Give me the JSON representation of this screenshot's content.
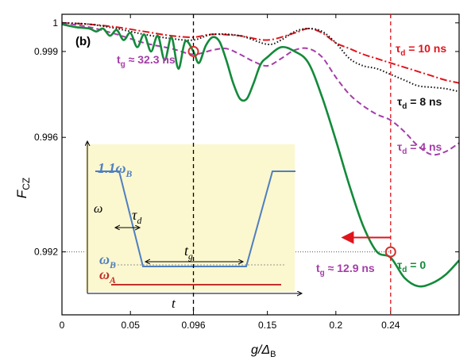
{
  "chart_data": {
    "type": "line",
    "panel_label": "(b)",
    "xlabel": {
      "main": "g/Δ",
      "sub": "B"
    },
    "ylabel": {
      "main": "F",
      "sub": "CZ"
    },
    "xlim": [
      0,
      0.29
    ],
    "ylim": [
      0.9898,
      1.0003
    ],
    "xticks": [
      0,
      0.05,
      0.096,
      0.15,
      0.2,
      0.24
    ],
    "xtick_labels": [
      "0",
      "0.05",
      "0.096",
      "0.15",
      "0.2",
      "0.24"
    ],
    "yticks": [
      0.992,
      0.996,
      0.999,
      1.0
    ],
    "ytick_labels": [
      "0.992",
      "0.996",
      "0.999",
      "1"
    ],
    "vlines": [
      {
        "x": 0.096,
        "color": "#000000"
      },
      {
        "x": 0.24,
        "color": "#e0141c"
      }
    ],
    "hline": {
      "y": 0.992,
      "x_max": 0.24
    },
    "series": [
      {
        "name": "τd = 0",
        "color": "#138a3a",
        "dash": "solid",
        "x": [
          0,
          0.01,
          0.02,
          0.025,
          0.03,
          0.035,
          0.04,
          0.045,
          0.05,
          0.055,
          0.06,
          0.065,
          0.07,
          0.075,
          0.08,
          0.085,
          0.09,
          0.096,
          0.1,
          0.105,
          0.11,
          0.115,
          0.12,
          0.125,
          0.13,
          0.135,
          0.14,
          0.145,
          0.15,
          0.16,
          0.17,
          0.18,
          0.19,
          0.2,
          0.21,
          0.22,
          0.23,
          0.24,
          0.25,
          0.26,
          0.27,
          0.28,
          0.29
        ],
        "y": [
          0.99995,
          0.99985,
          0.9998,
          0.9997,
          0.9998,
          0.99955,
          0.99975,
          0.9994,
          0.99965,
          0.99915,
          0.9996,
          0.999,
          0.99955,
          0.9987,
          0.9995,
          0.9984,
          0.99935,
          0.999,
          0.9986,
          0.9992,
          0.9995,
          0.99935,
          0.9987,
          0.9979,
          0.99735,
          0.99735,
          0.9979,
          0.99855,
          0.9988,
          0.99915,
          0.999,
          0.9986,
          0.9974,
          0.9959,
          0.9943,
          0.9929,
          0.992,
          0.9918,
          0.9911,
          0.9908,
          0.9909,
          0.9912,
          0.9917
        ]
      },
      {
        "name": "τd = 4 ns",
        "color": "#a53da8",
        "dash": "7,4",
        "x": [
          0,
          0.02,
          0.04,
          0.06,
          0.08,
          0.096,
          0.11,
          0.12,
          0.13,
          0.14,
          0.15,
          0.16,
          0.17,
          0.18,
          0.19,
          0.2,
          0.21,
          0.22,
          0.23,
          0.24,
          0.25,
          0.26,
          0.27,
          0.28,
          0.29
        ],
        "y": [
          1.0,
          0.99985,
          0.9996,
          0.9993,
          0.9991,
          0.9989,
          0.99905,
          0.9991,
          0.9989,
          0.99865,
          0.9985,
          0.99875,
          0.99905,
          0.9991,
          0.9988,
          0.9981,
          0.9975,
          0.9971,
          0.9968,
          0.9966,
          0.9962,
          0.9957,
          0.9954,
          0.9955,
          0.9958
        ]
      },
      {
        "name": "τd = 8 ns",
        "color": "#111111",
        "dash": "1.5,2.5",
        "x": [
          0,
          0.02,
          0.04,
          0.06,
          0.08,
          0.096,
          0.11,
          0.13,
          0.15,
          0.16,
          0.17,
          0.18,
          0.19,
          0.2,
          0.21,
          0.22,
          0.23,
          0.24,
          0.25,
          0.26,
          0.27,
          0.28,
          0.29
        ],
        "y": [
          1.0,
          0.99995,
          0.9998,
          0.9996,
          0.99945,
          0.9994,
          0.9996,
          0.99955,
          0.99925,
          0.9994,
          0.9997,
          0.9998,
          0.9997,
          0.9993,
          0.99875,
          0.9985,
          0.9984,
          0.9982,
          0.998,
          0.9978,
          0.99775,
          0.9977,
          0.9976
        ]
      },
      {
        "name": "τd = 10 ns",
        "color": "#e0141c",
        "dash": "9,3,2,3",
        "x": [
          0,
          0.02,
          0.04,
          0.06,
          0.08,
          0.096,
          0.11,
          0.13,
          0.15,
          0.17,
          0.18,
          0.19,
          0.2,
          0.21,
          0.22,
          0.23,
          0.24,
          0.25,
          0.26,
          0.27,
          0.28,
          0.29
        ],
        "y": [
          1.0,
          0.99995,
          0.99985,
          0.9997,
          0.99955,
          0.9995,
          0.9996,
          0.99955,
          0.9994,
          0.99965,
          0.9998,
          0.99965,
          0.9993,
          0.9991,
          0.9989,
          0.99875,
          0.9986,
          0.99845,
          0.9983,
          0.99815,
          0.998,
          0.9979
        ]
      }
    ],
    "curve_labels": [
      {
        "text": "τ",
        "sub": "d",
        "rest": " = 10 ns",
        "color": "#e0141c"
      },
      {
        "text": "τ",
        "sub": "d",
        "rest": " = 8 ns",
        "color": "#111111"
      },
      {
        "text": "τ",
        "sub": "d",
        "rest": " = 4 ns",
        "color": "#a53da8"
      },
      {
        "text": "τ",
        "sub": "d",
        "rest": " = 0",
        "color": "#138a3a"
      }
    ],
    "markers": [
      {
        "x": 0.096,
        "y": 0.999,
        "color": "#d2322d"
      },
      {
        "x": 0.24,
        "y": 0.992,
        "color": "#d2322d"
      }
    ],
    "annotations": [
      {
        "text": "t",
        "sub": "g",
        "rest": " ≈ 32.3 ns",
        "color": "#a53da8"
      },
      {
        "text": "t",
        "sub": "g",
        "rest": " ≈ 12.9 ns",
        "color": "#a53da8"
      }
    ],
    "arrow": {
      "from_x": 0.24,
      "to_x": 0.205,
      "y": 0.9925,
      "color": "#e0141c"
    }
  },
  "inset": {
    "background": "#fbf7cf",
    "pulse_color": "#4f7fc0",
    "omega_a_color": "#c0302a",
    "ylabel": "ω",
    "xlabel": "t",
    "top_label": "1.1ω",
    "top_label_sub": "B",
    "omega_b_label": "ω",
    "omega_b_sub": "B",
    "omega_a_label": "ω",
    "omega_a_sub": "A",
    "tau_label": "τ",
    "tau_sub": "d",
    "tg_label": "t",
    "tg_sub": "g"
  }
}
